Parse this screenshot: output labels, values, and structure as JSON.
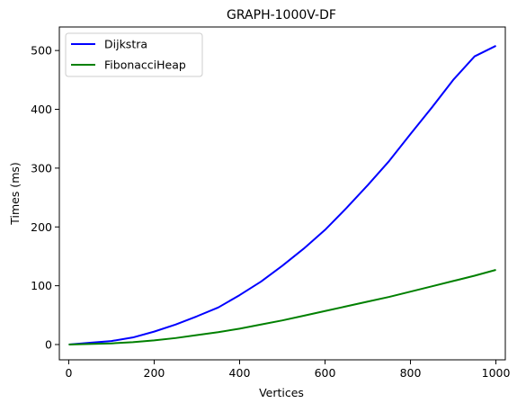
{
  "chart_data": {
    "type": "line",
    "title": "GRAPH-1000V-DF",
    "xlabel": "Vertices",
    "ylabel": "Times (ms)",
    "xlim": [
      -22,
      1022
    ],
    "ylim": [
      -26,
      540
    ],
    "x_ticks": [
      0,
      200,
      400,
      600,
      800,
      1000
    ],
    "y_ticks": [
      0,
      100,
      200,
      300,
      400,
      500
    ],
    "x_tick_labels": [
      "0",
      "200",
      "400",
      "600",
      "800",
      "1000"
    ],
    "y_tick_labels": [
      "0",
      "100",
      "200",
      "300",
      "400",
      "500"
    ],
    "grid": false,
    "legend_position": "top-left",
    "x": [
      0,
      50,
      100,
      150,
      200,
      250,
      300,
      350,
      400,
      450,
      500,
      550,
      600,
      650,
      700,
      750,
      800,
      850,
      900,
      950,
      1000
    ],
    "series": [
      {
        "name": "Dijkstra",
        "color": "#0000ff",
        "values": [
          0,
          3,
          6,
          12,
          22,
          34,
          48,
          63,
          84,
          107,
          134,
          163,
          195,
          232,
          271,
          312,
          358,
          403,
          450,
          490,
          508
        ]
      },
      {
        "name": "FibonacciHeap",
        "color": "#008000",
        "values": [
          0,
          1,
          2,
          4,
          7,
          11,
          16,
          21,
          27,
          34,
          41,
          49,
          57,
          65,
          73,
          81,
          90,
          99,
          108,
          117,
          127
        ]
      }
    ]
  }
}
